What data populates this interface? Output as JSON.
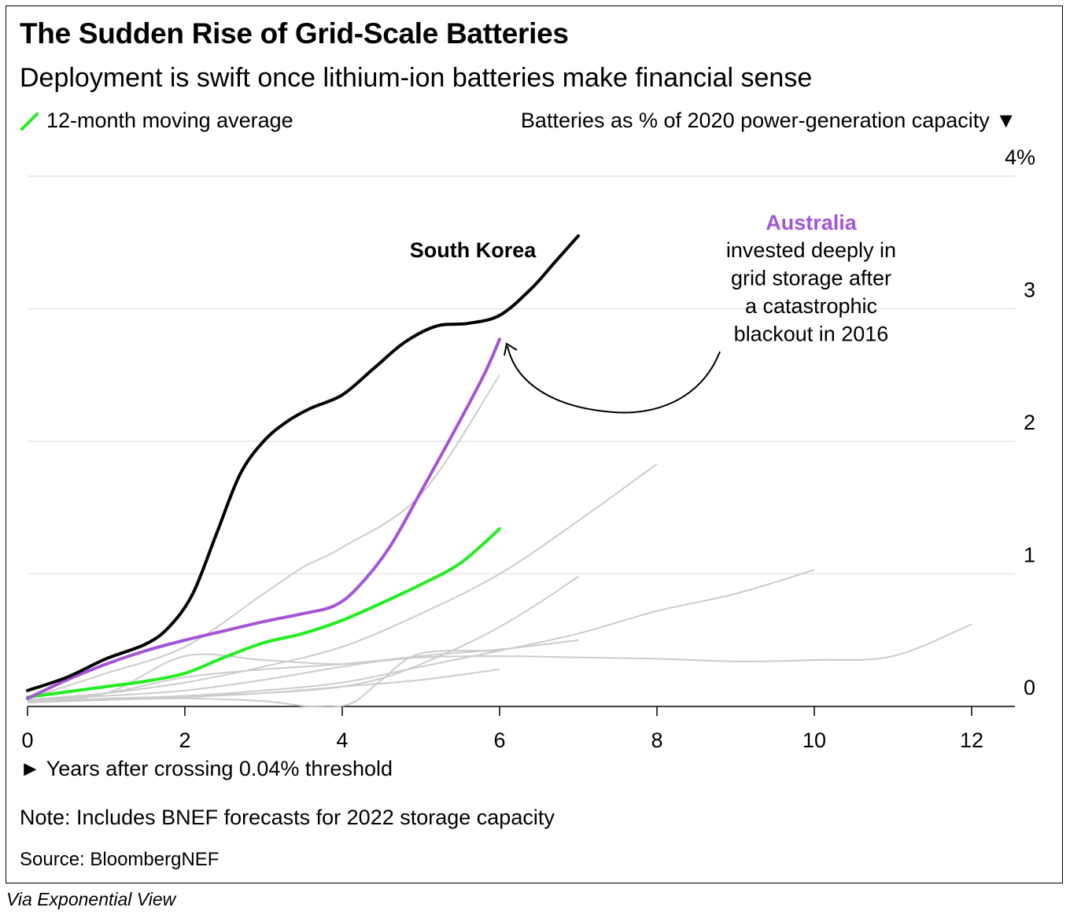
{
  "title": "The Sudden Rise of Grid-Scale Batteries",
  "subtitle": "Deployment is swift once lithium-ion batteries make financial sense",
  "legend": {
    "label": "12-month moving average",
    "color": "#22ee22"
  },
  "y_axis_caption": "Batteries as % of 2020 power-generation capacity ▼",
  "x_axis_caption": "► Years after crossing 0.04% threshold",
  "note": "Note: Includes BNEF forecasts for 2022 storage capacity",
  "source": "Source: BloombergNEF",
  "credit": "Via Exponential View",
  "annotations": {
    "south_korea": "South Korea",
    "australia_name": "Australia",
    "australia_text": [
      "invested deeply in",
      "grid storage after",
      "a catastrophic",
      "blackout in 2016"
    ]
  },
  "chart_data": {
    "type": "line",
    "xlim": [
      0,
      12.5
    ],
    "ylim": [
      0,
      4
    ],
    "x_ticks": [
      0,
      2,
      4,
      6,
      8,
      10,
      12
    ],
    "y_ticks": [
      {
        "value": 0,
        "label": "0"
      },
      {
        "value": 1,
        "label": "1"
      },
      {
        "value": 2,
        "label": "2"
      },
      {
        "value": 3,
        "label": "3"
      },
      {
        "value": 4,
        "label": "4%"
      }
    ],
    "grid": true,
    "highlight_series": [
      {
        "name": "South Korea",
        "color": "#000000",
        "x": [
          0,
          0.5,
          1,
          1.5,
          1.8,
          2.1,
          2.4,
          2.7,
          3,
          3.3,
          3.6,
          4,
          4.4,
          4.8,
          5.2,
          5.6,
          6,
          6.4,
          6.7,
          7
        ],
        "y": [
          0.12,
          0.22,
          0.36,
          0.47,
          0.6,
          0.85,
          1.3,
          1.75,
          2.0,
          2.15,
          2.25,
          2.35,
          2.55,
          2.75,
          2.87,
          2.89,
          2.95,
          3.15,
          3.35,
          3.55
        ]
      },
      {
        "name": "Australia",
        "color": "#a455d6",
        "x": [
          0,
          0.5,
          1,
          1.5,
          2,
          2.5,
          3,
          3.5,
          3.9,
          4.2,
          4.6,
          5,
          5.4,
          5.8,
          6
        ],
        "y": [
          0.06,
          0.2,
          0.32,
          0.42,
          0.5,
          0.57,
          0.64,
          0.7,
          0.76,
          0.9,
          1.2,
          1.62,
          2.05,
          2.5,
          2.77
        ]
      },
      {
        "name": "12-month moving average",
        "color": "#22ee22",
        "x": [
          0,
          0.5,
          1,
          1.5,
          2,
          2.5,
          3,
          3.5,
          4,
          4.5,
          5,
          5.5,
          6
        ],
        "y": [
          0.07,
          0.11,
          0.15,
          0.19,
          0.25,
          0.37,
          0.48,
          0.55,
          0.65,
          0.78,
          0.92,
          1.08,
          1.34
        ]
      }
    ],
    "background_series": [
      {
        "x": [
          0,
          1,
          2,
          3,
          3.5,
          4,
          5,
          6
        ],
        "y": [
          0.06,
          0.25,
          0.45,
          0.85,
          1.05,
          1.2,
          1.6,
          2.5
        ]
      },
      {
        "x": [
          0,
          1,
          2,
          3,
          4,
          5,
          6,
          7,
          8
        ],
        "y": [
          0.05,
          0.1,
          0.18,
          0.3,
          0.45,
          0.7,
          1.0,
          1.4,
          1.83
        ]
      },
      {
        "x": [
          0,
          1,
          2,
          3,
          4,
          4.7,
          5.5,
          6,
          6.5,
          7
        ],
        "y": [
          0.03,
          0.05,
          0.08,
          0.1,
          0.15,
          0.25,
          0.45,
          0.6,
          0.78,
          0.98
        ]
      },
      {
        "x": [
          0,
          1,
          2,
          3,
          4,
          5,
          6,
          7,
          8,
          9,
          10
        ],
        "y": [
          0.04,
          0.06,
          0.08,
          0.12,
          0.18,
          0.3,
          0.42,
          0.55,
          0.72,
          0.85,
          1.03
        ]
      },
      {
        "x": [
          0,
          1,
          2,
          3,
          4,
          5,
          6,
          7,
          8,
          9,
          10,
          11,
          12
        ],
        "y": [
          0.04,
          0.1,
          0.38,
          0.35,
          0.32,
          0.37,
          0.38,
          0.37,
          0.36,
          0.34,
          0.35,
          0.38,
          0.62
        ]
      },
      {
        "x": [
          0,
          1,
          2,
          3,
          4,
          5,
          6,
          7
        ],
        "y": [
          0.05,
          0.08,
          0.12,
          0.2,
          0.3,
          0.38,
          0.43,
          0.5
        ]
      },
      {
        "x": [
          0,
          1,
          2,
          3,
          3.6,
          4.1,
          4.5,
          5,
          6
        ],
        "y": [
          0.04,
          0.05,
          0.06,
          0.04,
          0.0,
          0.02,
          0.2,
          0.4,
          0.42
        ]
      },
      {
        "x": [
          0,
          1,
          2,
          3,
          4,
          5,
          6
        ],
        "y": [
          0.03,
          0.05,
          0.07,
          0.1,
          0.15,
          0.2,
          0.28
        ]
      },
      {
        "x": [
          0,
          1,
          2,
          3,
          4,
          5
        ],
        "y": [
          0.04,
          0.1,
          0.22,
          0.28,
          0.32,
          0.38
        ]
      }
    ],
    "background_color": "#cccccc"
  }
}
